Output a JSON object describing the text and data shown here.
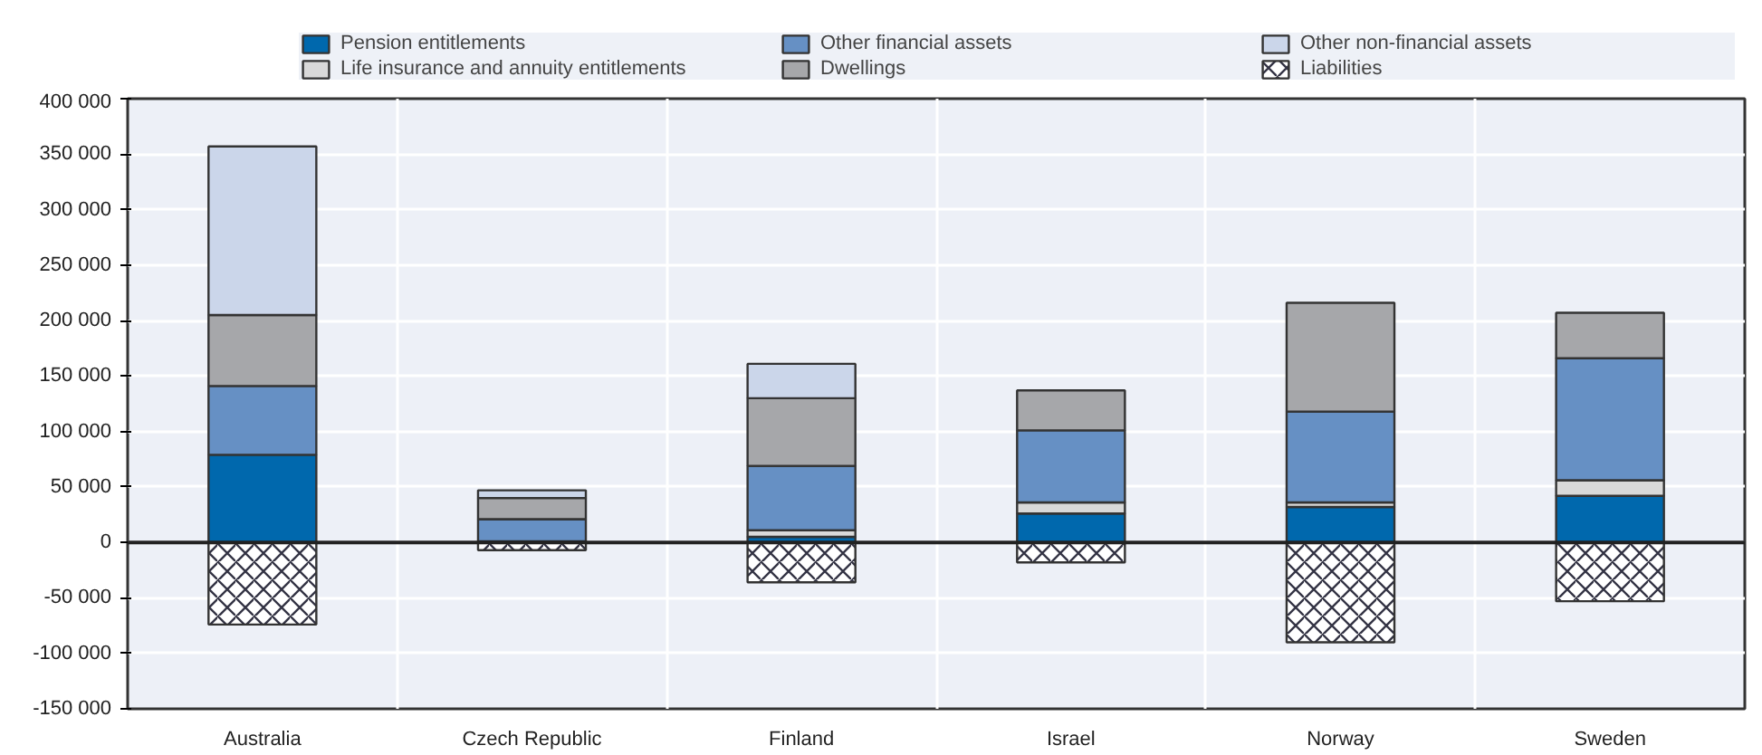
{
  "chart_data": {
    "type": "bar",
    "stacked": true,
    "categories": [
      "Australia",
      "Czech Republic",
      "Finland",
      "Israel",
      "Norway",
      "Sweden"
    ],
    "series": [
      {
        "name": "Pension entitlements",
        "color": "#0068ad",
        "values": [
          79000,
          1000,
          5000,
          26000,
          32000,
          42000
        ]
      },
      {
        "name": "Life insurance and annuity entitlements",
        "color": "#d9d9d9",
        "values": [
          null,
          null,
          6000,
          10000,
          4000,
          14000
        ]
      },
      {
        "name": "Other financial assets",
        "color": "#6690c4",
        "values": [
          62000,
          20000,
          58000,
          65000,
          82000,
          110000
        ]
      },
      {
        "name": "Dwellings",
        "color": "#a6a7aa",
        "values": [
          64000,
          19000,
          61000,
          36000,
          98000,
          41000
        ]
      },
      {
        "name": "Other non-financial assets",
        "color": "#cbd6ea",
        "values": [
          152000,
          7000,
          31000,
          null,
          null,
          null
        ]
      },
      {
        "name": "Liabilities",
        "color": "#ffffff",
        "values": [
          -74000,
          -7000,
          -36000,
          -18000,
          -90000,
          -53000
        ]
      }
    ],
    "ylim": [
      -150000,
      400000
    ],
    "yticks": [
      {
        "value": -150000,
        "label": "-150 000"
      },
      {
        "value": -100000,
        "label": "-100 000"
      },
      {
        "value": -50000,
        "label": "-50 000"
      },
      0,
      {
        "value": 50000,
        "label": "50 000"
      },
      {
        "value": 100000,
        "label": "100 000"
      },
      {
        "value": 150000,
        "label": "150 000"
      },
      {
        "value": 200000,
        "label": "200 000"
      },
      {
        "value": 250000,
        "label": "250 000"
      },
      {
        "value": 300000,
        "label": "300 000"
      },
      {
        "value": 350000,
        "label": "350 000"
      },
      {
        "value": 400000,
        "label": "400 000"
      }
    ],
    "grid": true,
    "legend": "top"
  }
}
